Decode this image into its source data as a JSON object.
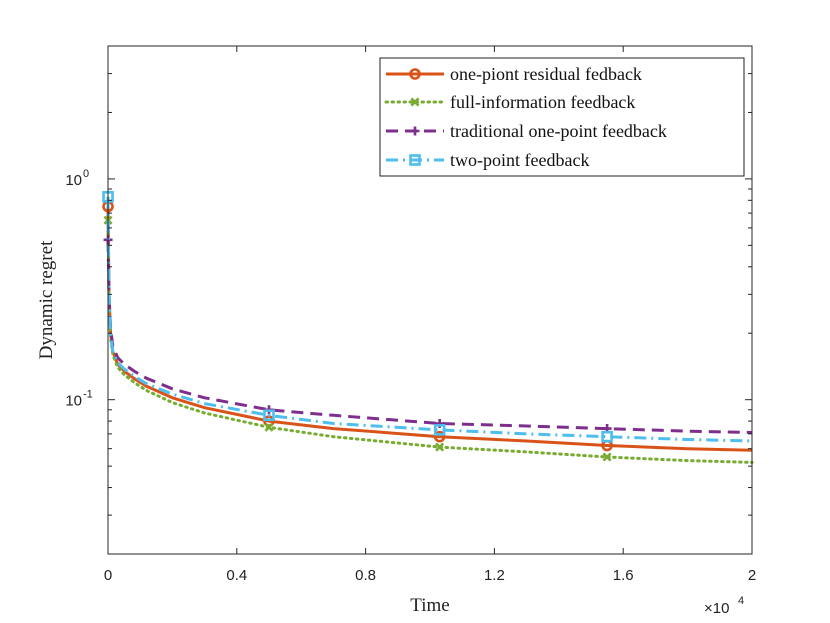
{
  "chart_data": {
    "type": "line",
    "title": "",
    "xlabel": "Time",
    "ylabel": "Dynamic regret",
    "x_multiplier_label": "×10",
    "x_multiplier_exp": "4",
    "xlim": [
      0,
      20000
    ],
    "ylim": [
      0.02,
      4
    ],
    "yscale": "log",
    "grid": false,
    "x_ticks": [
      0,
      4000,
      8000,
      12000,
      16000,
      20000
    ],
    "x_tick_labels": [
      "0",
      "0.4",
      "0.8",
      "1.2",
      "1.6",
      "2"
    ],
    "y_ticks": [
      0.1,
      1
    ],
    "y_tick_base": "10",
    "y_tick_exps": [
      "-1",
      "0"
    ],
    "legend_position": "top-right",
    "series": [
      {
        "name": "one-piont residual fedback",
        "color": "#D95319",
        "style": "solid",
        "marker": "circle",
        "x": [
          1,
          30,
          80,
          150,
          300,
          500,
          800,
          1200,
          2000,
          3000,
          5000,
          7000,
          10300,
          13000,
          15500,
          18000,
          20000
        ],
        "y": [
          0.75,
          0.3,
          0.2,
          0.165,
          0.145,
          0.135,
          0.125,
          0.115,
          0.102,
          0.092,
          0.08,
          0.074,
          0.068,
          0.065,
          0.062,
          0.06,
          0.059
        ],
        "marker_x": [
          1,
          5000,
          10300,
          15500
        ]
      },
      {
        "name": "full-information feedback",
        "color": "#77AC30",
        "style": "dotted",
        "marker": "x",
        "x": [
          1,
          30,
          80,
          150,
          300,
          500,
          800,
          1200,
          2000,
          3000,
          5000,
          7000,
          10300,
          13000,
          15500,
          18000,
          20000
        ],
        "y": [
          0.65,
          0.28,
          0.19,
          0.16,
          0.14,
          0.13,
          0.12,
          0.11,
          0.097,
          0.087,
          0.075,
          0.068,
          0.061,
          0.058,
          0.055,
          0.053,
          0.052
        ],
        "marker_x": [
          1,
          5000,
          10300,
          15500
        ]
      },
      {
        "name": "traditional one-point feedback",
        "color": "#7E2F8E",
        "style": "dashed",
        "marker": "plus",
        "x": [
          1,
          30,
          80,
          150,
          300,
          500,
          800,
          1200,
          2000,
          3000,
          5000,
          7000,
          10300,
          13000,
          15500,
          18000,
          20000
        ],
        "y": [
          0.53,
          0.3,
          0.21,
          0.175,
          0.155,
          0.145,
          0.135,
          0.125,
          0.112,
          0.102,
          0.09,
          0.085,
          0.078,
          0.076,
          0.074,
          0.072,
          0.071
        ],
        "marker_x": [
          1,
          5000,
          10300,
          15500
        ]
      },
      {
        "name": "two-point feedback",
        "color": "#4DBEEE",
        "style": "dashdot",
        "marker": "square",
        "x": [
          1,
          30,
          80,
          150,
          300,
          500,
          800,
          1200,
          2000,
          3000,
          5000,
          7000,
          10300,
          13000,
          15500,
          18000,
          20000
        ],
        "y": [
          0.83,
          0.3,
          0.2,
          0.165,
          0.147,
          0.138,
          0.128,
          0.118,
          0.106,
          0.096,
          0.085,
          0.078,
          0.073,
          0.07,
          0.068,
          0.066,
          0.065
        ],
        "marker_x": [
          1,
          5000,
          10300,
          15500
        ]
      }
    ]
  }
}
